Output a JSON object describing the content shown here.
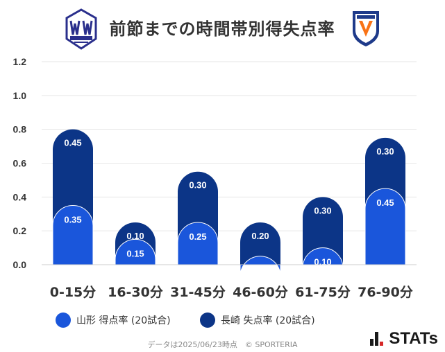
{
  "title": "前節までの時間帯別得失点率",
  "colors": {
    "home": "#1a56db",
    "away": "#0c3587",
    "grid": "#e6e6e6",
    "text": "#333333"
  },
  "logos": {
    "home_icon": "montedio-yamagata-crest",
    "away_icon": "v-varen-nagasaki-crest"
  },
  "chart_data": {
    "type": "bar",
    "categories": [
      "0-15分",
      "16-30分",
      "31-45分",
      "46-60分",
      "61-75分",
      "76-90分"
    ],
    "series": [
      {
        "name": "山形 得点率 (20試合)",
        "values": [
          0.35,
          0.15,
          0.25,
          0.05,
          0.1,
          0.45
        ],
        "labels": [
          "0.35",
          "0.15",
          "0.25",
          "",
          "0.10",
          "0.45"
        ]
      },
      {
        "name": "長崎 失点率 (20試合)",
        "values": [
          0.45,
          0.1,
          0.3,
          0.2,
          0.3,
          0.3
        ],
        "labels": [
          "0.45",
          "0.10",
          "0.30",
          "0.20",
          "0.30",
          "0.30"
        ]
      }
    ],
    "yticks": [
      "0.0",
      "0.2",
      "0.4",
      "0.6",
      "0.8",
      "1.0",
      "1.2"
    ],
    "ylim": [
      0,
      1.2
    ],
    "grid": true,
    "stacked": true,
    "legend": "bottom"
  },
  "footer": "データは2025/06/23時点　© SPORTERIA",
  "brand": "STATs"
}
